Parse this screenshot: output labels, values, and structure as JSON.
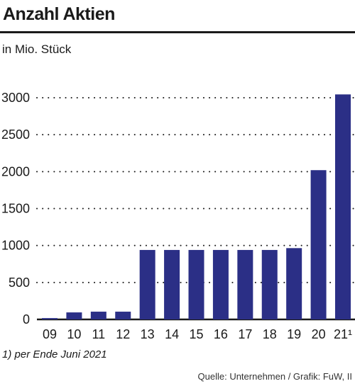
{
  "title": "Anzahl Aktien",
  "subtitle": "in Mio. Stück",
  "footnote": "1) per Ende Juni 2021",
  "source": "Quelle: Unternehmen / Grafik: FuW, II",
  "colors": {
    "bar": "#2b2f86",
    "grid": "#1a1a1a",
    "text": "#1a1a1a"
  },
  "chart_data": {
    "type": "bar",
    "title": "Anzahl Aktien",
    "subtitle": "in Mio. Stück",
    "categories": [
      "09",
      "10",
      "11",
      "12",
      "13",
      "14",
      "15",
      "16",
      "17",
      "18",
      "19",
      "20",
      "21¹"
    ],
    "values": [
      18,
      95,
      105,
      105,
      940,
      940,
      940,
      940,
      940,
      940,
      965,
      2020,
      3045
    ],
    "ylim": [
      0,
      3000
    ],
    "yticks": [
      0,
      500,
      1000,
      1500,
      2000,
      2500,
      3000
    ],
    "grid": true,
    "xlabel": "",
    "ylabel": ""
  }
}
